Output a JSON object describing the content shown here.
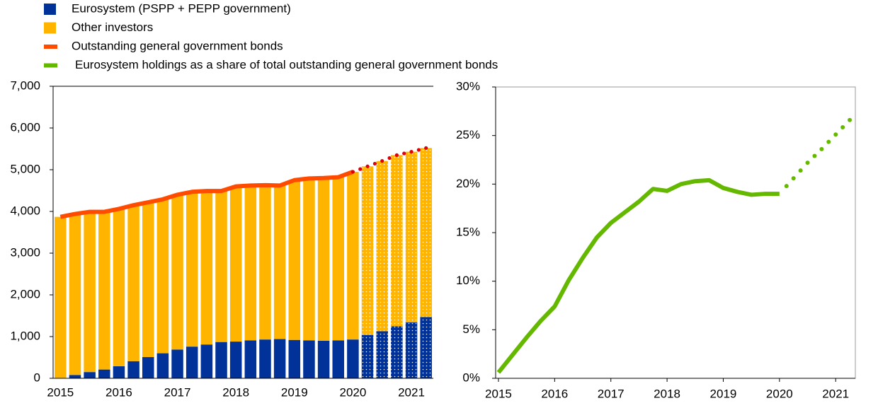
{
  "chart_data": [
    {
      "type": "bar",
      "stacked": true,
      "categories": [
        "2015",
        null,
        null,
        null,
        "2016",
        null,
        null,
        null,
        "2017",
        null,
        null,
        null,
        "2018",
        null,
        null,
        null,
        "2019",
        null,
        null,
        null,
        "2020",
        null,
        null,
        null,
        "2021",
        null
      ],
      "series": [
        {
          "name": "Eurosystem (PSPP + PEPP government)",
          "color": "#003299",
          "values": [
            10,
            80,
            150,
            210,
            290,
            410,
            510,
            600,
            690,
            760,
            810,
            870,
            880,
            910,
            930,
            940,
            920,
            910,
            900,
            910,
            930,
            1040,
            1130,
            1250,
            1340,
            1470
          ]
        },
        {
          "name": "Other investors",
          "color": "#FFB400",
          "values": [
            3860,
            3860,
            3840,
            3780,
            3770,
            3740,
            3710,
            3690,
            3710,
            3710,
            3680,
            3620,
            3720,
            3710,
            3700,
            3680,
            3830,
            3880,
            3900,
            3910,
            4020,
            4040,
            4080,
            4100,
            4090,
            4050
          ]
        },
        {
          "name": "Outstanding general government bonds",
          "color": "#FF4B00",
          "type": "line",
          "projection_color": "#E0000A",
          "values": [
            3870,
            3940,
            3990,
            3990,
            4060,
            4150,
            4220,
            4290,
            4400,
            4470,
            4490,
            4490,
            4600,
            4620,
            4630,
            4620,
            4750,
            4790,
            4800,
            4820,
            4950,
            5080,
            5210,
            5350,
            5430,
            5520
          ]
        }
      ],
      "ylim": [
        0,
        7000
      ],
      "yticks": [
        0,
        {
          "value": 1000,
          "label": "1,000"
        },
        {
          "value": 2000,
          "label": "2,000"
        },
        {
          "value": 3000,
          "label": "3,000"
        },
        {
          "value": 4000,
          "label": "4,000"
        },
        {
          "value": 5000,
          "label": "5,000"
        },
        {
          "value": 6000,
          "label": "6,000"
        },
        {
          "value": 7000,
          "label": "7,000"
        }
      ],
      "dotted_after": 20
    },
    {
      "type": "line",
      "x": [
        2015,
        2015.25,
        2015.5,
        2015.75,
        2016,
        2016.25,
        2016.5,
        2016.75,
        2017,
        2017.25,
        2017.5,
        2017.75,
        2018,
        2018.25,
        2018.5,
        2018.75,
        2019,
        2019.25,
        2019.5,
        2019.75,
        2020,
        2020.25,
        2020.5,
        2020.75,
        2021,
        2021.25
      ],
      "series": [
        {
          "name": "Eurosystem holdings as a share of total outstanding general government bonds",
          "color": "#65B800",
          "values": [
            0.6,
            2.4,
            4.2,
            5.9,
            7.4,
            10.1,
            12.4,
            14.5,
            16.0,
            17.1,
            18.2,
            19.5,
            19.3,
            20.0,
            20.3,
            20.4,
            19.6,
            19.2,
            18.9,
            19.0,
            19.0,
            20.6,
            22.2,
            23.6,
            25.1,
            26.6
          ]
        }
      ],
      "xlim": [
        2014.95,
        2021.35
      ],
      "xticks": [
        2015,
        2016,
        2017,
        2018,
        2019,
        2020,
        2021
      ],
      "ylim": [
        0,
        30
      ],
      "yticks": [
        {
          "value": 0,
          "label": "0%"
        },
        {
          "value": 5,
          "label": "5%"
        },
        {
          "value": 10,
          "label": "10%"
        },
        {
          "value": 15,
          "label": "15%"
        },
        {
          "value": 20,
          "label": "20%"
        },
        {
          "value": 25,
          "label": "25%"
        },
        {
          "value": 30,
          "label": "30%"
        }
      ],
      "dotted_after": 20
    }
  ]
}
